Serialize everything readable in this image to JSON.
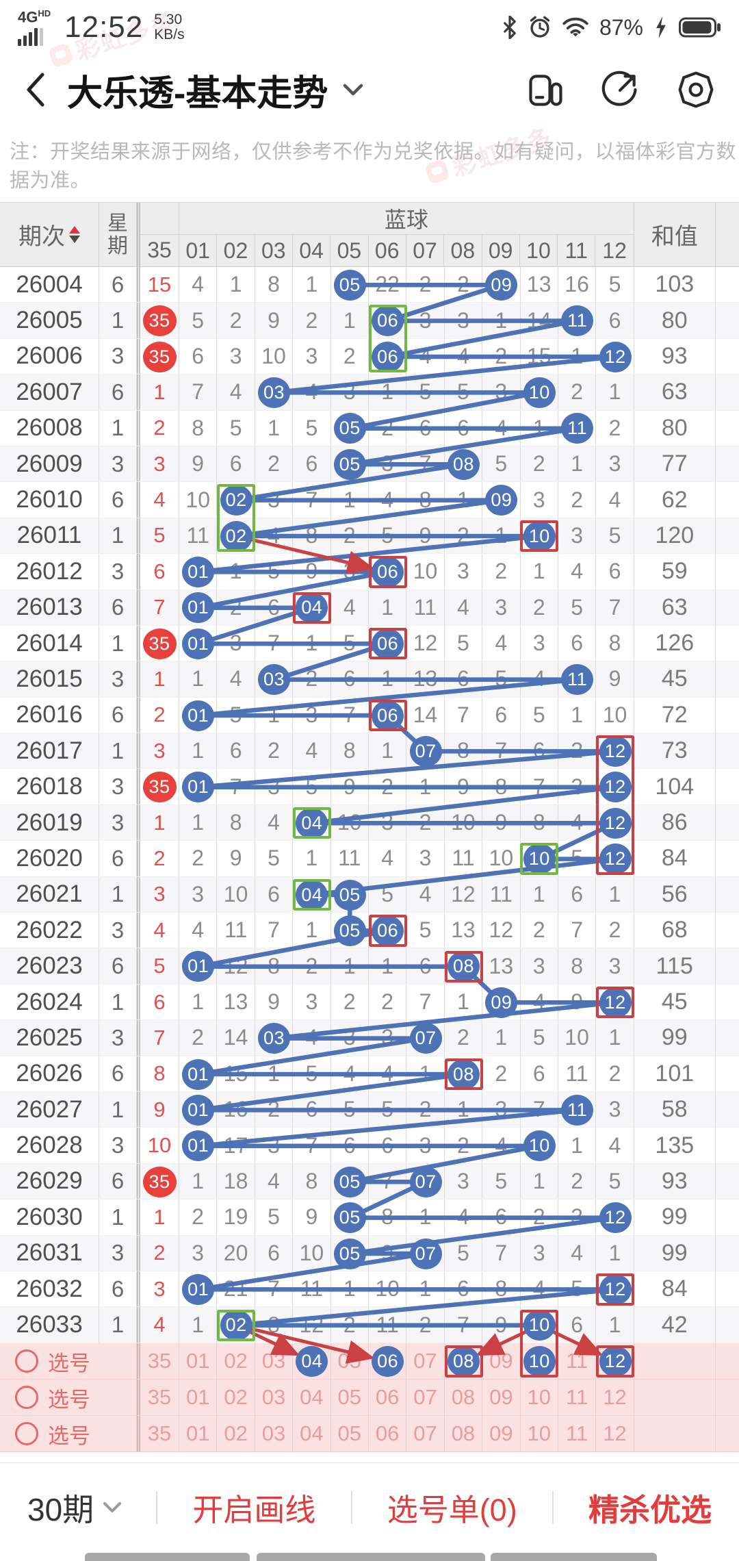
{
  "status_bar": {
    "network": "4G",
    "network_badge": "HD",
    "time": "12:52",
    "speed": "5.30",
    "speed_unit": "KB/s",
    "battery_percent": "87%"
  },
  "nav": {
    "title": "大乐透-基本走势"
  },
  "notice": "注：开奖结果来源于网络，仅供参考不作为兑奖依据。如有疑问，以福体彩官方数据为准。",
  "table": {
    "headers": {
      "period": "期次",
      "week": "星期",
      "zone": "蓝球",
      "sum": "和值"
    },
    "ball_columns": [
      "35",
      "01",
      "02",
      "03",
      "04",
      "05",
      "06",
      "07",
      "08",
      "09",
      "10",
      "11",
      "12"
    ],
    "rows": [
      {
        "period": "26004",
        "week": "6",
        "m35": "15",
        "m35_ball": false,
        "cells": [
          "4",
          "1",
          "8",
          "1",
          "05",
          "22",
          "2",
          "2",
          "09",
          "13",
          "16",
          "5"
        ],
        "balls": [
          5,
          9
        ],
        "sum": "103"
      },
      {
        "period": "26005",
        "week": "1",
        "m35": "35",
        "m35_ball": true,
        "cells": [
          "5",
          "2",
          "9",
          "2",
          "1",
          "06",
          "3",
          "3",
          "1",
          "14",
          "11",
          "6"
        ],
        "balls": [
          6,
          11
        ],
        "sum": "80"
      },
      {
        "period": "26006",
        "week": "3",
        "m35": "35",
        "m35_ball": true,
        "cells": [
          "6",
          "3",
          "10",
          "3",
          "2",
          "06",
          "4",
          "4",
          "2",
          "15",
          "1",
          "12"
        ],
        "balls": [
          6,
          12
        ],
        "sum": "93"
      },
      {
        "period": "26007",
        "week": "6",
        "m35": "1",
        "m35_ball": false,
        "cells": [
          "7",
          "4",
          "03",
          "4",
          "3",
          "1",
          "5",
          "5",
          "3",
          "10",
          "2",
          "1"
        ],
        "balls": [
          3,
          10
        ],
        "sum": "63"
      },
      {
        "period": "26008",
        "week": "1",
        "m35": "2",
        "m35_ball": false,
        "cells": [
          "8",
          "5",
          "1",
          "5",
          "05",
          "2",
          "6",
          "6",
          "4",
          "1",
          "11",
          "2"
        ],
        "balls": [
          5,
          11
        ],
        "sum": "80"
      },
      {
        "period": "26009",
        "week": "3",
        "m35": "3",
        "m35_ball": false,
        "cells": [
          "9",
          "6",
          "2",
          "6",
          "05",
          "3",
          "7",
          "08",
          "5",
          "2",
          "1",
          "3"
        ],
        "balls": [
          5,
          8
        ],
        "sum": "77"
      },
      {
        "period": "26010",
        "week": "6",
        "m35": "4",
        "m35_ball": false,
        "cells": [
          "10",
          "02",
          "3",
          "7",
          "1",
          "4",
          "8",
          "1",
          "09",
          "3",
          "2",
          "4"
        ],
        "balls": [
          2,
          9
        ],
        "sum": "62"
      },
      {
        "period": "26011",
        "week": "1",
        "m35": "5",
        "m35_ball": false,
        "cells": [
          "11",
          "02",
          "4",
          "8",
          "2",
          "5",
          "9",
          "2",
          "1",
          "10",
          "3",
          "5"
        ],
        "balls": [
          2,
          10
        ],
        "sum": "120"
      },
      {
        "period": "26012",
        "week": "3",
        "m35": "6",
        "m35_ball": false,
        "cells": [
          "01",
          "1",
          "5",
          "9",
          "3",
          "06",
          "10",
          "3",
          "2",
          "1",
          "4",
          "6"
        ],
        "balls": [
          1,
          6
        ],
        "sum": "59"
      },
      {
        "period": "26013",
        "week": "6",
        "m35": "7",
        "m35_ball": false,
        "cells": [
          "01",
          "2",
          "6",
          "04",
          "4",
          "1",
          "11",
          "4",
          "3",
          "2",
          "5",
          "7"
        ],
        "balls": [
          1,
          4
        ],
        "sum": "63"
      },
      {
        "period": "26014",
        "week": "1",
        "m35": "35",
        "m35_ball": true,
        "cells": [
          "01",
          "3",
          "7",
          "1",
          "5",
          "06",
          "12",
          "5",
          "4",
          "3",
          "6",
          "8"
        ],
        "balls": [
          1,
          6
        ],
        "sum": "126"
      },
      {
        "period": "26015",
        "week": "3",
        "m35": "1",
        "m35_ball": false,
        "cells": [
          "1",
          "4",
          "03",
          "2",
          "6",
          "1",
          "13",
          "6",
          "5",
          "4",
          "11",
          "9"
        ],
        "balls": [
          3,
          11
        ],
        "sum": "45"
      },
      {
        "period": "26016",
        "week": "6",
        "m35": "2",
        "m35_ball": false,
        "cells": [
          "01",
          "5",
          "1",
          "3",
          "7",
          "06",
          "14",
          "7",
          "6",
          "5",
          "1",
          "10"
        ],
        "balls": [
          1,
          6
        ],
        "sum": "72"
      },
      {
        "period": "26017",
        "week": "1",
        "m35": "3",
        "m35_ball": false,
        "cells": [
          "1",
          "6",
          "2",
          "4",
          "8",
          "1",
          "07",
          "8",
          "7",
          "6",
          "2",
          "12"
        ],
        "balls": [
          7,
          12
        ],
        "sum": "73"
      },
      {
        "period": "26018",
        "week": "3",
        "m35": "35",
        "m35_ball": true,
        "cells": [
          "01",
          "7",
          "3",
          "5",
          "9",
          "2",
          "1",
          "9",
          "8",
          "7",
          "3",
          "12"
        ],
        "balls": [
          1,
          12
        ],
        "sum": "104"
      },
      {
        "period": "26019",
        "week": "3",
        "m35": "1",
        "m35_ball": false,
        "cells": [
          "1",
          "8",
          "4",
          "04",
          "10",
          "3",
          "2",
          "10",
          "9",
          "8",
          "4",
          "12"
        ],
        "balls": [
          4,
          12
        ],
        "sum": "86"
      },
      {
        "period": "26020",
        "week": "6",
        "m35": "2",
        "m35_ball": false,
        "cells": [
          "2",
          "9",
          "5",
          "1",
          "11",
          "4",
          "3",
          "11",
          "10",
          "10",
          "5",
          "12"
        ],
        "balls": [
          10,
          12
        ],
        "sum": "84"
      },
      {
        "period": "26021",
        "week": "1",
        "m35": "3",
        "m35_ball": false,
        "cells": [
          "3",
          "10",
          "6",
          "04",
          "05",
          "5",
          "4",
          "12",
          "11",
          "1",
          "6",
          "1"
        ],
        "balls": [
          4,
          5
        ],
        "sum": "56"
      },
      {
        "period": "26022",
        "week": "3",
        "m35": "4",
        "m35_ball": false,
        "cells": [
          "4",
          "11",
          "7",
          "1",
          "05",
          "06",
          "5",
          "13",
          "12",
          "2",
          "7",
          "2"
        ],
        "balls": [
          5,
          6
        ],
        "sum": "68"
      },
      {
        "period": "26023",
        "week": "6",
        "m35": "5",
        "m35_ball": false,
        "cells": [
          "01",
          "12",
          "8",
          "2",
          "1",
          "1",
          "6",
          "08",
          "13",
          "3",
          "8",
          "3"
        ],
        "balls": [
          1,
          8
        ],
        "sum": "115"
      },
      {
        "period": "26024",
        "week": "1",
        "m35": "6",
        "m35_ball": false,
        "cells": [
          "1",
          "13",
          "9",
          "3",
          "2",
          "2",
          "7",
          "1",
          "09",
          "4",
          "9",
          "12"
        ],
        "balls": [
          9,
          12
        ],
        "sum": "45"
      },
      {
        "period": "26025",
        "week": "3",
        "m35": "7",
        "m35_ball": false,
        "cells": [
          "2",
          "14",
          "03",
          "4",
          "3",
          "3",
          "07",
          "2",
          "1",
          "5",
          "10",
          "1"
        ],
        "balls": [
          3,
          7
        ],
        "sum": "99"
      },
      {
        "period": "26026",
        "week": "6",
        "m35": "8",
        "m35_ball": false,
        "cells": [
          "01",
          "15",
          "1",
          "5",
          "4",
          "4",
          "1",
          "08",
          "2",
          "6",
          "11",
          "2"
        ],
        "balls": [
          1,
          8
        ],
        "sum": "101"
      },
      {
        "period": "26027",
        "week": "1",
        "m35": "9",
        "m35_ball": false,
        "cells": [
          "01",
          "16",
          "2",
          "6",
          "5",
          "5",
          "2",
          "1",
          "3",
          "7",
          "11",
          "3"
        ],
        "balls": [
          1,
          11
        ],
        "sum": "58"
      },
      {
        "period": "26028",
        "week": "3",
        "m35": "10",
        "m35_ball": false,
        "cells": [
          "01",
          "17",
          "3",
          "7",
          "6",
          "6",
          "3",
          "2",
          "4",
          "10",
          "1",
          "4"
        ],
        "balls": [
          1,
          10
        ],
        "sum": "135"
      },
      {
        "period": "26029",
        "week": "6",
        "m35": "35",
        "m35_ball": true,
        "cells": [
          "1",
          "18",
          "4",
          "8",
          "05",
          "7",
          "07",
          "3",
          "5",
          "1",
          "2",
          "5"
        ],
        "balls": [
          5,
          7
        ],
        "sum": "93"
      },
      {
        "period": "26030",
        "week": "1",
        "m35": "1",
        "m35_ball": false,
        "cells": [
          "2",
          "19",
          "5",
          "9",
          "05",
          "8",
          "1",
          "4",
          "6",
          "2",
          "3",
          "12"
        ],
        "balls": [
          5,
          12
        ],
        "sum": "99"
      },
      {
        "period": "26031",
        "week": "3",
        "m35": "2",
        "m35_ball": false,
        "cells": [
          "3",
          "20",
          "6",
          "10",
          "05",
          "9",
          "07",
          "5",
          "7",
          "3",
          "4",
          "1"
        ],
        "balls": [
          5,
          7
        ],
        "sum": "99"
      },
      {
        "period": "26032",
        "week": "6",
        "m35": "3",
        "m35_ball": false,
        "cells": [
          "01",
          "21",
          "7",
          "11",
          "1",
          "10",
          "1",
          "6",
          "8",
          "4",
          "5",
          "12"
        ],
        "balls": [
          1,
          12
        ],
        "sum": "84"
      },
      {
        "period": "26033",
        "week": "1",
        "m35": "4",
        "m35_ball": false,
        "cells": [
          "1",
          "02",
          "8",
          "12",
          "2",
          "11",
          "2",
          "7",
          "9",
          "10",
          "6",
          "1"
        ],
        "balls": [
          2,
          10
        ],
        "sum": "42"
      }
    ],
    "boxes": [
      {
        "row": 1,
        "col": 6,
        "span": 2,
        "color": "green"
      },
      {
        "row": 6,
        "col": 2,
        "span": 2,
        "color": "green"
      },
      {
        "row": 7,
        "col": 10,
        "span": 1,
        "color": "red"
      },
      {
        "row": 8,
        "col": 6,
        "span": 1,
        "color": "red"
      },
      {
        "row": 9,
        "col": 4,
        "span": 1,
        "color": "red"
      },
      {
        "row": 10,
        "col": 6,
        "span": 1,
        "color": "red"
      },
      {
        "row": 12,
        "col": 6,
        "span": 1,
        "color": "red"
      },
      {
        "row": 13,
        "col": 12,
        "span": 4,
        "color": "red"
      },
      {
        "row": 15,
        "col": 4,
        "span": 1,
        "color": "green"
      },
      {
        "row": 16,
        "col": 10,
        "span": 1,
        "color": "green"
      },
      {
        "row": 17,
        "col": 4,
        "span": 1,
        "color": "green"
      },
      {
        "row": 18,
        "col": 6,
        "span": 1,
        "color": "red"
      },
      {
        "row": 19,
        "col": 8,
        "span": 1,
        "color": "red"
      },
      {
        "row": 20,
        "col": 12,
        "span": 1,
        "color": "red"
      },
      {
        "row": 22,
        "col": 8,
        "span": 1,
        "color": "red"
      },
      {
        "row": 28,
        "col": 12,
        "span": 1,
        "color": "red"
      },
      {
        "row": 29,
        "col": 2,
        "span": 1,
        "color": "green"
      },
      {
        "row": 29,
        "col": 10,
        "span": 2,
        "color": "red"
      },
      {
        "row": 30,
        "col": 8,
        "span": 1,
        "color": "red"
      },
      {
        "row": 30,
        "col": 12,
        "span": 1,
        "color": "red"
      }
    ],
    "red_arrows": [
      {
        "from": [
          7,
          2
        ],
        "to": [
          8,
          6
        ]
      },
      {
        "from": [
          29,
          2
        ],
        "to": [
          30,
          4
        ]
      },
      {
        "from": [
          29,
          2
        ],
        "to": [
          30,
          6
        ]
      },
      {
        "from": [
          29,
          10
        ],
        "to": [
          30,
          8
        ]
      },
      {
        "from": [
          29,
          10
        ],
        "to": [
          30,
          12
        ]
      }
    ]
  },
  "selection": {
    "label": "选号",
    "numbers": [
      "35",
      "01",
      "02",
      "03",
      "04",
      "05",
      "06",
      "07",
      "08",
      "09",
      "10",
      "11",
      "12"
    ],
    "rows": [
      {
        "balls": [
          4,
          6,
          8,
          10,
          12
        ]
      },
      {
        "balls": []
      },
      {
        "balls": []
      }
    ]
  },
  "toolbar": {
    "periods": "30期",
    "draw": "开启画线",
    "ticket": "选号单(0)",
    "premium": "精杀优选"
  },
  "watermark": "彩虹多多",
  "colors": {
    "blue": "#4d73b6",
    "red_ball": "#e8413c",
    "red_text": "#e2514d",
    "green": "#72b944",
    "box_red": "#cb4042",
    "pink_bg": "#fbe2e2"
  }
}
